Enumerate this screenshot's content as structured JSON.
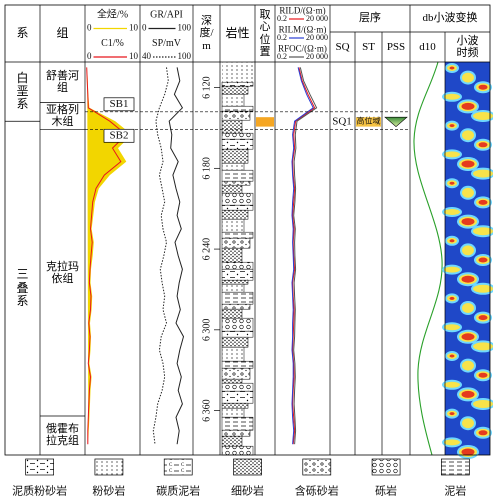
{
  "headers": {
    "system": "系",
    "formation": "组",
    "depth": "深度/m",
    "lithology": "岩性",
    "core": "取心位置",
    "sequence": "层序",
    "sq": "SQ",
    "st": "ST",
    "pss": "PSS",
    "wavelet": "db小波变换",
    "d10": "d10",
    "timefreq": "小波时频"
  },
  "depth": {
    "lim": [
      6101,
      6393
    ],
    "ticks": [
      {
        "value": 6120,
        "label": "6 120"
      },
      {
        "value": 6180,
        "label": "6 180"
      },
      {
        "value": 6240,
        "label": "6 240"
      },
      {
        "value": 6300,
        "label": "6 300"
      },
      {
        "value": 6360,
        "label": "6 360"
      }
    ]
  },
  "systems": [
    {
      "name": "白垩系",
      "top": 6101,
      "bottom": 6145
    },
    {
      "name": "三叠系",
      "top": 6145,
      "bottom": 6393
    }
  ],
  "formations": [
    {
      "name": "舒善河组",
      "top": 6101,
      "bottom": 6131
    },
    {
      "name": "亚格列木组",
      "top": 6131,
      "bottom": 6151
    },
    {
      "name": "克拉玛依组",
      "top": 6151,
      "bottom": 6364
    },
    {
      "name": "俄霍布拉克组",
      "top": 6364,
      "bottom": 6393
    }
  ],
  "boundaries": [
    {
      "name": "SB1",
      "depth": 6138
    },
    {
      "name": "SB2",
      "depth": 6151
    }
  ],
  "core": {
    "top": 6142,
    "bottom": 6149,
    "color": "#f5a623"
  },
  "sequence": {
    "name": "SQ1",
    "tract": "高位域",
    "top": 6142,
    "bottom": 6149,
    "color": "#f5c242"
  },
  "samples": [
    6105,
    6115,
    6125,
    6135,
    6145,
    6155,
    6165,
    6175,
    6185,
    6195,
    6205,
    6215,
    6225,
    6235,
    6245,
    6255,
    6265,
    6275,
    6285,
    6295,
    6305,
    6315,
    6325,
    6335,
    6345,
    6355,
    6365,
    6375,
    6385
  ],
  "tracks": [
    {
      "curves": [
        {
          "name": "全烃/%",
          "lim": [
            0,
            10
          ],
          "color": "#f2d600",
          "fill": true,
          "values": [
            0.4,
            0.5,
            0.6,
            0.8,
            5.5,
            8.5,
            6,
            7.5,
            4.5,
            2.5,
            1.8,
            1.5,
            1.2,
            1.6,
            1.4,
            1.1,
            1.0,
            1.3,
            1.2,
            0.9,
            1.1,
            1.0,
            0.8,
            1.2,
            1.0,
            0.9,
            0.8,
            0.7,
            0.6
          ]
        },
        {
          "name": "C1/%",
          "lim": [
            0,
            10
          ],
          "color": "#e8161c",
          "values": [
            0.3,
            0.4,
            0.5,
            0.6,
            4.5,
            7.5,
            5,
            6.5,
            3.5,
            2.0,
            1.4,
            1.2,
            1.0,
            1.3,
            1.1,
            0.9,
            0.8,
            1.1,
            1.0,
            0.7,
            0.9,
            0.8,
            0.6,
            1.0,
            0.8,
            0.7,
            0.6,
            0.5,
            0.5
          ]
        }
      ]
    },
    {
      "curves": [
        {
          "name": "GR/API",
          "lim": [
            0,
            100
          ],
          "color": "#222222",
          "values": [
            70,
            75,
            65,
            80,
            55,
            60,
            58,
            72,
            62,
            68,
            75,
            70,
            78,
            66,
            72,
            80,
            74,
            70,
            76,
            68,
            82,
            75,
            70,
            78,
            72,
            80,
            68,
            74,
            70
          ]
        },
        {
          "name": "SP/mV",
          "lim": [
            40,
            100
          ],
          "color": "#222222",
          "style": "dotted",
          "values": [
            70,
            72,
            68,
            62,
            58,
            60,
            64,
            66,
            62,
            65,
            68,
            64,
            66,
            70,
            67,
            63,
            65,
            68,
            66,
            70,
            64,
            62,
            66,
            68,
            65,
            60,
            58,
            55,
            57
          ]
        }
      ]
    },
    {
      "log": true,
      "curves": [
        {
          "name": "RILD/(Ω·m)",
          "lim": [
            0.2,
            {
              "value": 20000,
              "label": "20 000"
            }
          ],
          "color": "#e8161c",
          "values": [
            30,
            60,
            200,
            800,
            15,
            10,
            12,
            8,
            9,
            12,
            10,
            8,
            11,
            9,
            10,
            12,
            8,
            9,
            11,
            10,
            9,
            8,
            10,
            11,
            9,
            8,
            10,
            12,
            9
          ]
        },
        {
          "name": "RILM/(Ω·m)",
          "lim": [
            0.2,
            {
              "value": 20000,
              "label": "20 000"
            }
          ],
          "color": "#2a3fd6",
          "values": [
            25,
            50,
            150,
            600,
            12,
            8,
            10,
            7,
            8,
            10,
            8,
            7,
            9,
            8,
            9,
            10,
            7,
            8,
            9,
            8,
            8,
            7,
            9,
            9,
            8,
            7,
            8,
            10,
            8
          ]
        },
        {
          "name": "RFOC/(Ω·m)",
          "lim": [
            0.2,
            {
              "value": 20000,
              "label": "20 000"
            }
          ],
          "color": "#555555",
          "values": [
            40,
            80,
            300,
            1200,
            20,
            14,
            16,
            11,
            12,
            15,
            13,
            10,
            14,
            12,
            13,
            15,
            11,
            12,
            14,
            13,
            12,
            10,
            13,
            14,
            12,
            11,
            13,
            15,
            12
          ]
        }
      ]
    }
  ],
  "legend": [
    "泥质粉砂岩",
    "粉砂岩",
    "碳质泥岩",
    "细砂岩",
    "含砾砂岩",
    "砾岩",
    "泥岩"
  ]
}
